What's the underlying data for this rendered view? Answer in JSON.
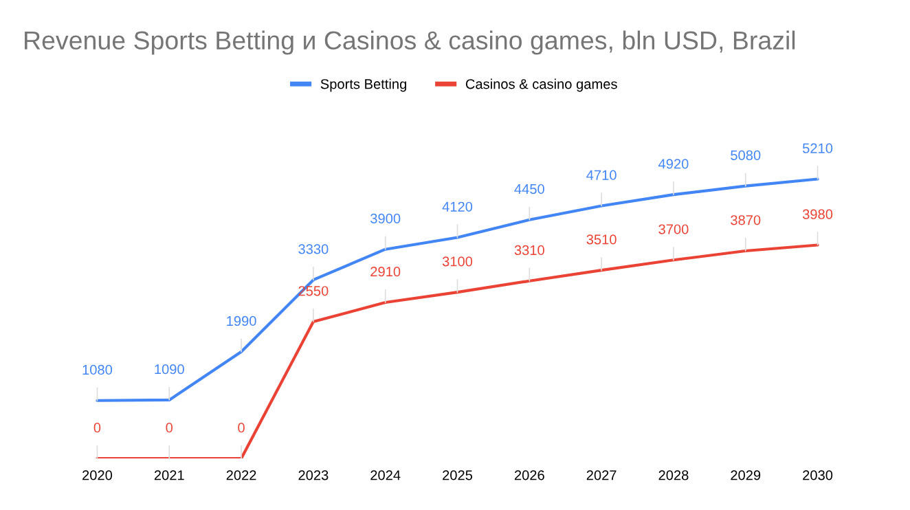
{
  "chart_data": {
    "type": "line",
    "title": "Revenue Sports Betting и Casinos & casino games, bln USD, Brazil",
    "categories": [
      "2020",
      "2021",
      "2022",
      "2023",
      "2024",
      "2025",
      "2026",
      "2027",
      "2028",
      "2029",
      "2030"
    ],
    "series": [
      {
        "name": "Sports Betting",
        "color": "#4285f4",
        "values": [
          1080,
          1090,
          1990,
          3330,
          3900,
          4120,
          4450,
          4710,
          4920,
          5080,
          5210
        ]
      },
      {
        "name": "Casinos & casino games",
        "color": "#ea4335",
        "values": [
          0,
          0,
          0,
          2550,
          2910,
          3100,
          3310,
          3510,
          3700,
          3870,
          3980
        ]
      }
    ],
    "data_labels": true,
    "legend": "top",
    "grid": false,
    "marker": "none",
    "line_style": "solid"
  }
}
